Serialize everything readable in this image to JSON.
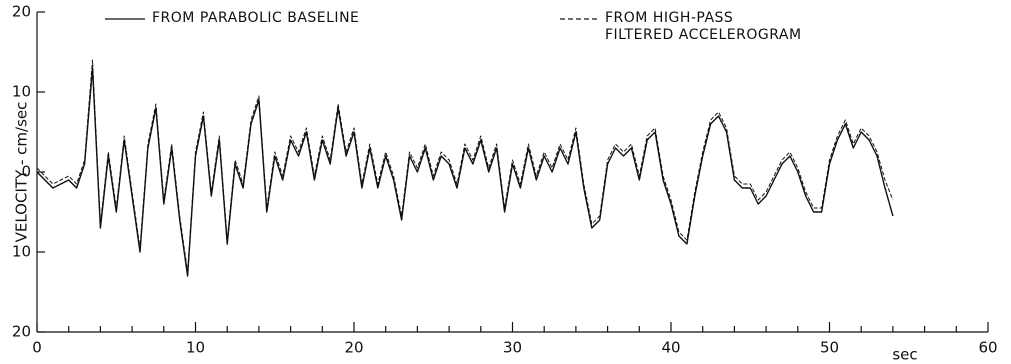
{
  "chart_data": {
    "type": "line",
    "y_label": "VELOCITY - cm/sec",
    "x_unit": "sec",
    "xlim": [
      0,
      60
    ],
    "xticks": [
      0,
      10,
      20,
      30,
      40,
      50,
      60
    ],
    "xticks_minor": [
      2,
      4,
      6,
      8,
      12,
      14,
      16,
      18,
      22,
      24,
      26,
      28,
      32,
      34,
      36,
      38,
      42,
      44,
      46,
      48,
      52,
      54,
      56,
      58
    ],
    "ylim": [
      -20,
      20
    ],
    "yticks": [
      {
        "value": -20,
        "label": "20"
      },
      {
        "value": -10,
        "label": "10"
      },
      0,
      10,
      20
    ],
    "x": [
      0,
      0.5,
      1,
      1.5,
      2,
      2.5,
      3,
      3.5,
      4,
      4.5,
      5,
      5.5,
      6,
      6.5,
      7,
      7.5,
      8,
      8.5,
      9,
      9.5,
      10,
      10.5,
      11,
      11.5,
      12,
      12.5,
      13,
      13.5,
      14,
      14.5,
      15,
      15.5,
      16,
      16.5,
      17,
      17.5,
      18,
      18.5,
      19,
      19.5,
      20,
      20.5,
      21,
      21.5,
      22,
      22.5,
      23,
      23.5,
      24,
      24.5,
      25,
      25.5,
      26,
      26.5,
      27,
      27.5,
      28,
      28.5,
      29,
      29.5,
      30,
      30.5,
      31,
      31.5,
      32,
      32.5,
      33,
      33.5,
      34,
      34.5,
      35,
      35.5,
      36,
      36.5,
      37,
      37.5,
      38,
      38.5,
      39,
      39.5,
      40,
      40.5,
      41,
      41.5,
      42,
      42.5,
      43,
      43.5,
      44,
      44.5,
      45,
      45.5,
      46,
      46.5,
      47,
      47.5,
      48,
      48.5,
      49,
      49.5,
      50,
      50.5,
      51,
      51.5,
      52,
      52.5,
      53,
      53.5,
      54
    ],
    "series": [
      {
        "name": "FROM PARABOLIC BASELINE",
        "color": "#111",
        "dash": false,
        "values": [
          0,
          -1,
          -2,
          -1.5,
          -1,
          -2,
          1,
          13,
          -7,
          2,
          -5,
          4,
          -3,
          -10,
          3,
          8,
          -4,
          3,
          -6,
          -13,
          2,
          7,
          -3,
          4,
          -9,
          1,
          -2,
          6,
          9,
          -5,
          2,
          -1,
          4,
          2,
          5,
          -1,
          4,
          1,
          8,
          2,
          5,
          -2,
          3,
          -2,
          2,
          -1,
          -6,
          2,
          0,
          3,
          -1,
          2,
          1,
          -2,
          3,
          1,
          4,
          0,
          3,
          -5,
          1,
          -2,
          3,
          -1,
          2,
          0,
          3,
          1,
          5,
          -2,
          -7,
          -6,
          1,
          3,
          2,
          3,
          -1,
          4,
          5,
          -1,
          -4,
          -8,
          -9,
          -3,
          2,
          6,
          7,
          5,
          -1,
          -2,
          -2,
          -4,
          -3,
          -1,
          1,
          2,
          0,
          -3,
          -5,
          -5,
          1,
          4,
          6,
          3,
          5,
          4,
          2,
          -2,
          -5.5
        ]
      },
      {
        "name": "FROM HIGH-PASS FILTERED ACCELEROGRAM",
        "color": "#111",
        "dash": true,
        "values": [
          0.5,
          -0.5,
          -1.5,
          -1,
          -0.5,
          -1.5,
          1.5,
          14,
          -6.5,
          2.5,
          -4.5,
          4.5,
          -2.5,
          -9.5,
          3.5,
          8.5,
          -3.5,
          3.5,
          -5.5,
          -12.5,
          2.5,
          7.5,
          -2.5,
          4.5,
          -8.5,
          1.5,
          -1.5,
          6.5,
          9.5,
          -4.5,
          2.5,
          -0.5,
          4.5,
          2.5,
          5.5,
          -0.5,
          4.5,
          1.5,
          8.5,
          2.5,
          5.5,
          -1.5,
          3.5,
          -1.5,
          2.5,
          -0.5,
          -5.5,
          2.5,
          0.5,
          3.5,
          -0.5,
          2.5,
          1.5,
          -1.5,
          3.5,
          1.5,
          4.5,
          0.5,
          3.5,
          -4.5,
          1.5,
          -1.5,
          3.5,
          -0.5,
          2.5,
          0.5,
          3.5,
          1.5,
          5.5,
          -1.5,
          -6.5,
          -5.5,
          1.5,
          3.5,
          2.5,
          3.5,
          -0.5,
          4.5,
          5.5,
          -0.5,
          -3.5,
          -7.5,
          -8.5,
          -2.5,
          2.5,
          6.5,
          7.5,
          5.5,
          -0.5,
          -1.5,
          -1.5,
          -3.5,
          -2.5,
          -0.5,
          1.5,
          2.5,
          0.5,
          -2.5,
          -4.5,
          -4.5,
          1.5,
          4.5,
          6.5,
          3.5,
          5.5,
          4.5,
          2.5,
          -1,
          -3.5
        ]
      }
    ]
  }
}
